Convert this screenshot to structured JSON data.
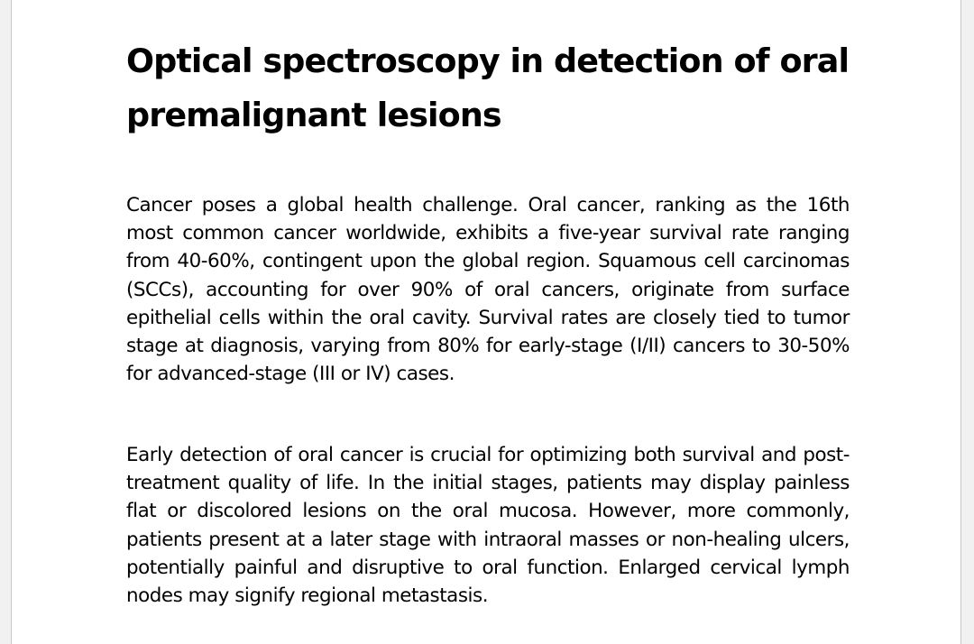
{
  "document": {
    "title": "Optical spectroscopy in detection of oral premalignant lesions",
    "paragraphs": [
      "Cancer poses a global health challenge. Oral cancer, ranking as the 16th most common cancer worldwide, exhibits a five-year survival rate ranging from 40-60%, contingent upon the global region. Squamous cell carcinomas (SCCs), accounting for over 90% of oral cancers, originate from surface epithelial cells within the oral cavity. Survival rates are closely tied to tumor stage at diagnosis, varying from 80% for early-stage (I/II) cancers to 30-50% for advanced-stage (III or IV) cases.",
      "Early detection of oral cancer is crucial for optimizing both survival and post-treatment quality of life. In the initial stages, patients may display painless flat or discolored lesions on the oral mucosa. However, more commonly, patients present at a later stage with intraoral masses or non-healing ulcers, potentially painful and disruptive to oral function. Enlarged cervical lymph nodes may signify regional metastasis."
    ]
  }
}
